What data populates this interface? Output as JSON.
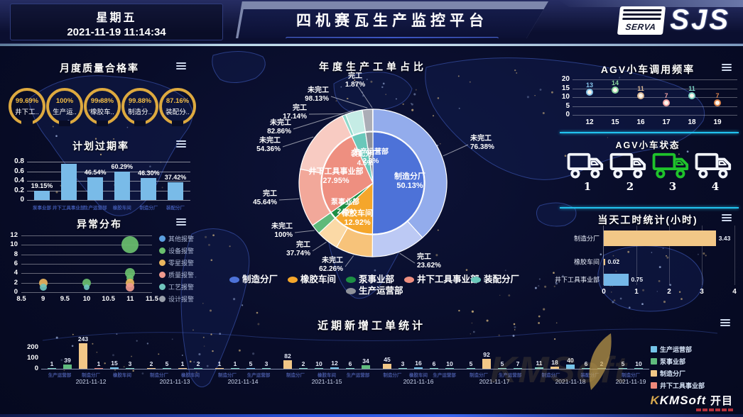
{
  "header": {
    "weekday": "星期五",
    "datetime": "2021-11-19 11:14:34",
    "title": "四机赛瓦生产监控平台",
    "logo_serva": "SERVA",
    "logo_sjs": "SJS"
  },
  "panels": {
    "quality": {
      "title": "月度质量合格率"
    },
    "overdue": {
      "title": "计划过期率"
    },
    "anomaly": {
      "title": "异常分布"
    },
    "donut": {
      "title": "年度生产工单占比"
    },
    "agv_freq": {
      "title": "AGV小车调用频率"
    },
    "agv_status": {
      "title": "AGV小车状态",
      "trucks": [
        {
          "num": "1",
          "color": "#f2f5fa"
        },
        {
          "num": "2",
          "color": "#f2f5fa"
        },
        {
          "num": "3",
          "color": "#1fc32b"
        },
        {
          "num": "4",
          "color": "#f2f5fa"
        }
      ]
    },
    "work_hours": {
      "title": "当天工时统计(小时)"
    },
    "recent": {
      "title": "近期新增工单统计"
    }
  },
  "footer": {
    "km": "KM",
    "soft": "Soft",
    "cn": "开目",
    "watermark": "KMSoft"
  },
  "chart_data": [
    {
      "id": "quality_gauges",
      "type": "gauge",
      "title": "月度质量合格率",
      "ring_color": "#dda93f",
      "items": [
        {
          "value": "99.69%",
          "label": "井下工.."
        },
        {
          "value": "100%",
          "label": "生产运.."
        },
        {
          "value": "99.88%",
          "label": "橡胶车.."
        },
        {
          "value": "99.88%",
          "label": "制造分.."
        },
        {
          "value": "87.16%",
          "label": "装配分.."
        }
      ]
    },
    {
      "id": "plan_overdue",
      "type": "bar",
      "title": "计划过期率",
      "categories": [
        "泵事业部",
        "井下工具事业部",
        "生产运营部",
        "橡胶车间",
        "制造分厂",
        "装配分厂"
      ],
      "values": [
        0.19,
        0.75,
        0.47,
        0.6,
        0.46,
        0.37
      ],
      "labels": [
        "19.15%",
        "",
        "46.54%",
        "60.29%",
        "46.30%",
        "37.42%"
      ],
      "ylim": [
        0,
        0.8
      ],
      "yticks": [
        "0",
        "0.2",
        "0.4",
        "0.6",
        "0.8"
      ],
      "bar_color": "#79bbe8"
    },
    {
      "id": "anomaly",
      "type": "scatter",
      "title": "异常分布",
      "xticks": [
        "8.5",
        "9",
        "9.5",
        "10",
        "10.5",
        "11",
        "11.5"
      ],
      "xlim": [
        8.5,
        11.5
      ],
      "yticks": [
        "0",
        "2",
        "4",
        "6",
        "8",
        "10",
        "12"
      ],
      "ylim": [
        0,
        12
      ],
      "legend": [
        {
          "label": "其他报警",
          "color": "#5b9fe0"
        },
        {
          "label": "设备报警",
          "color": "#6abf6e"
        },
        {
          "label": "零星报警",
          "color": "#e9b55e"
        },
        {
          "label": "质量报警",
          "color": "#ef9a8e"
        },
        {
          "label": "工艺报警",
          "color": "#6fc4bd"
        },
        {
          "label": "设计报警",
          "color": "#9aa0ab"
        }
      ],
      "points": [
        {
          "x": 9,
          "y": 2,
          "series": "零星报警",
          "r": 6
        },
        {
          "x": 9,
          "y": 1,
          "series": "工艺报警",
          "r": 5
        },
        {
          "x": 10,
          "y": 2,
          "series": "设备报警",
          "r": 6
        },
        {
          "x": 10,
          "y": 1,
          "series": "工艺报警",
          "r": 4
        },
        {
          "x": 11,
          "y": 10,
          "series": "设备报警",
          "r": 12
        },
        {
          "x": 11,
          "y": 4,
          "series": "设备报警",
          "r": 7
        },
        {
          "x": 11,
          "y": 3,
          "series": "设备报警",
          "r": 5
        },
        {
          "x": 11,
          "y": 2,
          "series": "零星报警",
          "r": 6
        },
        {
          "x": 11,
          "y": 1,
          "series": "质量报警",
          "r": 6
        }
      ]
    },
    {
      "id": "order_donut",
      "type": "donut",
      "title": "年度生产工单占比",
      "inner": [
        {
          "name": "制造分厂",
          "value": 50.13,
          "pct_label": "50.13%",
          "color": "#4d72d8"
        },
        {
          "name": "橡胶车间",
          "value": 12.92,
          "pct_label": "12.92%",
          "color": "#f5a62b"
        },
        {
          "name": "泵事业部",
          "value": 2.2,
          "pct_label": "2.2%",
          "color": "#1d8f44"
        },
        {
          "name": "井下工具事业部",
          "value": 27.95,
          "pct_label": "27.95%",
          "color": "#ee8f80"
        },
        {
          "name": "装配分厂",
          "value": 4.5,
          "pct_label": "4.5%",
          "color": "#69c8ba"
        },
        {
          "name": "生产运营部",
          "value": 2.3,
          "pct_label": "2.3%",
          "color": "#8f929b"
        }
      ],
      "outer": [
        {
          "dept": "制造分厂",
          "status": "未完工",
          "value": 76.38,
          "pct_label": "76.38%",
          "color": "#93acec"
        },
        {
          "dept": "制造分厂",
          "status": "完工",
          "value": 23.62,
          "pct_label": "23.62%",
          "color": "#bcc9f4"
        },
        {
          "dept": "橡胶车间",
          "status": "未完工",
          "value": 62.26,
          "pct_label": "62.26%",
          "color": "#f7c37a"
        },
        {
          "dept": "橡胶车间",
          "status": "完工",
          "value": 37.74,
          "pct_label": "37.74%",
          "color": "#fbd9a6"
        },
        {
          "dept": "泵事业部",
          "status": "未完工",
          "value": 100,
          "pct_label": "100%",
          "color": "#5eb97a"
        },
        {
          "dept": "井下工具事业部",
          "status": "完工",
          "value": 45.64,
          "pct_label": "45.64%",
          "color": "#f2a89a"
        },
        {
          "dept": "井下工具事业部",
          "status": "未完工",
          "value": 54.36,
          "pct_label": "54.36%",
          "color": "#f8cbc2"
        },
        {
          "dept": "装配分厂",
          "status": "完工",
          "value": 17.14,
          "pct_label": "17.14%",
          "color": "#8fd9cb"
        },
        {
          "dept": "装配分厂",
          "status": "未完工",
          "value": 82.86,
          "pct_label": "82.86%",
          "color": "#c5ece5"
        },
        {
          "dept": "生产运营部",
          "status": "未完工",
          "value": 98.13,
          "pct_label": "98.13%",
          "color": "#abadb6"
        },
        {
          "dept": "生产运营部",
          "status": "完工",
          "value": 1.87,
          "pct_label": "1.87%",
          "color": "#cdced6"
        }
      ],
      "legend": [
        {
          "label": "制造分厂",
          "color": "#4d72d8"
        },
        {
          "label": "橡胶车间",
          "color": "#f5a62b"
        },
        {
          "label": "泵事业部",
          "color": "#1d8f44"
        },
        {
          "label": "井下工具事业部",
          "color": "#ee8f80"
        },
        {
          "label": "装配分厂",
          "color": "#69c8ba"
        },
        {
          "label": "生产运营部",
          "color": "#8f929b"
        }
      ]
    },
    {
      "id": "agv_freq",
      "type": "scatter",
      "title": "AGV小车调用频率",
      "x": [
        "12",
        "15",
        "16",
        "17",
        "18",
        "19"
      ],
      "values": [
        13,
        14,
        11,
        7,
        11,
        7
      ],
      "colors": [
        "#86c5ea",
        "#8ad79f",
        "#d9b896",
        "#f2a5a5",
        "#7fd4c6",
        "#e0874e"
      ],
      "ylim": [
        0,
        20
      ],
      "yticks": [
        "0",
        "5",
        "10",
        "15",
        "20"
      ]
    },
    {
      "id": "work_hours",
      "type": "bar",
      "title": "当天工时统计(小时)",
      "orientation": "horizontal",
      "categories": [
        "制造分厂",
        "橡胶车间",
        "井下工具事业部"
      ],
      "values": [
        3.43,
        0.02,
        0.75
      ],
      "labels": [
        "3.43",
        "0.02",
        "0.75"
      ],
      "colors": [
        "#f2c787",
        "#f2c787",
        "#74b7e8"
      ],
      "xlim": [
        0,
        4
      ],
      "xticks": [
        "0",
        "1",
        "2",
        "3",
        "4"
      ]
    },
    {
      "id": "recent_orders",
      "type": "bar",
      "title": "近期新增工单统计",
      "yticks": [
        "0",
        "100",
        "200"
      ],
      "ylim": [
        0,
        200
      ],
      "legend": [
        {
          "label": "生产运营部",
          "color": "#74c3e8"
        },
        {
          "label": "泵事业部",
          "color": "#5fbb7d"
        },
        {
          "label": "制造分厂",
          "color": "#f2c787"
        },
        {
          "label": "井下工具事业部",
          "color": "#f0887a"
        }
      ],
      "groups": [
        {
          "date": "2021-11-12",
          "depts": [
            "生产运营部",
            "制造分厂",
            "橡胶车间"
          ],
          "bars": [
            {
              "v": 1,
              "c": "#7fd4c6"
            },
            {
              "v": 39,
              "c": "#5fbb7d"
            },
            {
              "v": 243,
              "c": "#f2c787",
              "clipped": true
            },
            {
              "v": 1,
              "c": "#f0887a"
            },
            {
              "v": 15,
              "c": "#74c3e8"
            },
            {
              "v": 3,
              "c": "#7fd4c6"
            }
          ]
        },
        {
          "date": "2021-11-13",
          "depts": [
            "制造分厂",
            "橡胶车间"
          ],
          "bars": [
            {
              "v": 2,
              "c": "#f2c787"
            },
            {
              "v": 5,
              "c": "#7fd4c6"
            },
            {
              "v": 1,
              "c": "#f2c787"
            },
            {
              "v": 2,
              "c": "#7fd4c6"
            }
          ]
        },
        {
          "date": "2021-11-14",
          "depts": [
            "制造分厂",
            "生产运营部"
          ],
          "bars": [
            {
              "v": 1,
              "c": "#f2c787"
            },
            {
              "v": 1,
              "c": "#7fd4c6"
            },
            {
              "v": 5,
              "c": "#74c3e8"
            },
            {
              "v": 3,
              "c": "#7fd4c6"
            }
          ]
        },
        {
          "date": "2021-11-15",
          "depts": [
            "制造分厂",
            "橡胶车间",
            "生产运营部"
          ],
          "bars": [
            {
              "v": 82,
              "c": "#f2c787"
            },
            {
              "v": 2,
              "c": "#7fd4c6"
            },
            {
              "v": 10,
              "c": "#7fd4c6"
            },
            {
              "v": 12,
              "c": "#74c3e8"
            },
            {
              "v": 6,
              "c": "#7fd4c6"
            },
            {
              "v": 34,
              "c": "#5fbb7d"
            }
          ]
        },
        {
          "date": "2021-11-16",
          "depts": [
            "制造分厂",
            "橡胶车间",
            "生产运营部"
          ],
          "bars": [
            {
              "v": 45,
              "c": "#f2c787"
            },
            {
              "v": 3,
              "c": "#7fd4c6"
            },
            {
              "v": 16,
              "c": "#74c3e8"
            },
            {
              "v": 6,
              "c": "#7fd4c6"
            },
            {
              "v": 10,
              "c": "#7fd4c6"
            }
          ]
        },
        {
          "date": "2021-11-17",
          "depts": [
            "制造分厂",
            "生产运营部"
          ],
          "bars": [
            {
              "v": 5,
              "c": "#7fd4c6"
            },
            {
              "v": 92,
              "c": "#f2c787"
            },
            {
              "v": 5,
              "c": "#7fd4c6"
            },
            {
              "v": 7,
              "c": "#7fd4c6"
            }
          ]
        },
        {
          "date": "2021-11-18",
          "depts": [
            "制造分厂",
            "装配分厂"
          ],
          "bars": [
            {
              "v": 11,
              "c": "#7fd4c6"
            },
            {
              "v": 18,
              "c": "#f2c787"
            },
            {
              "v": 40,
              "c": "#74c3e8"
            },
            {
              "v": 6,
              "c": "#7fd4c6"
            },
            {
              "v": 2,
              "c": "#7fd4c6"
            }
          ]
        },
        {
          "date": "2021-11-19",
          "depts": [
            "制造分厂"
          ],
          "bars": [
            {
              "v": 5,
              "c": "#7fd4c6"
            },
            {
              "v": 10,
              "c": "#7fd4c6"
            }
          ]
        }
      ]
    }
  ]
}
